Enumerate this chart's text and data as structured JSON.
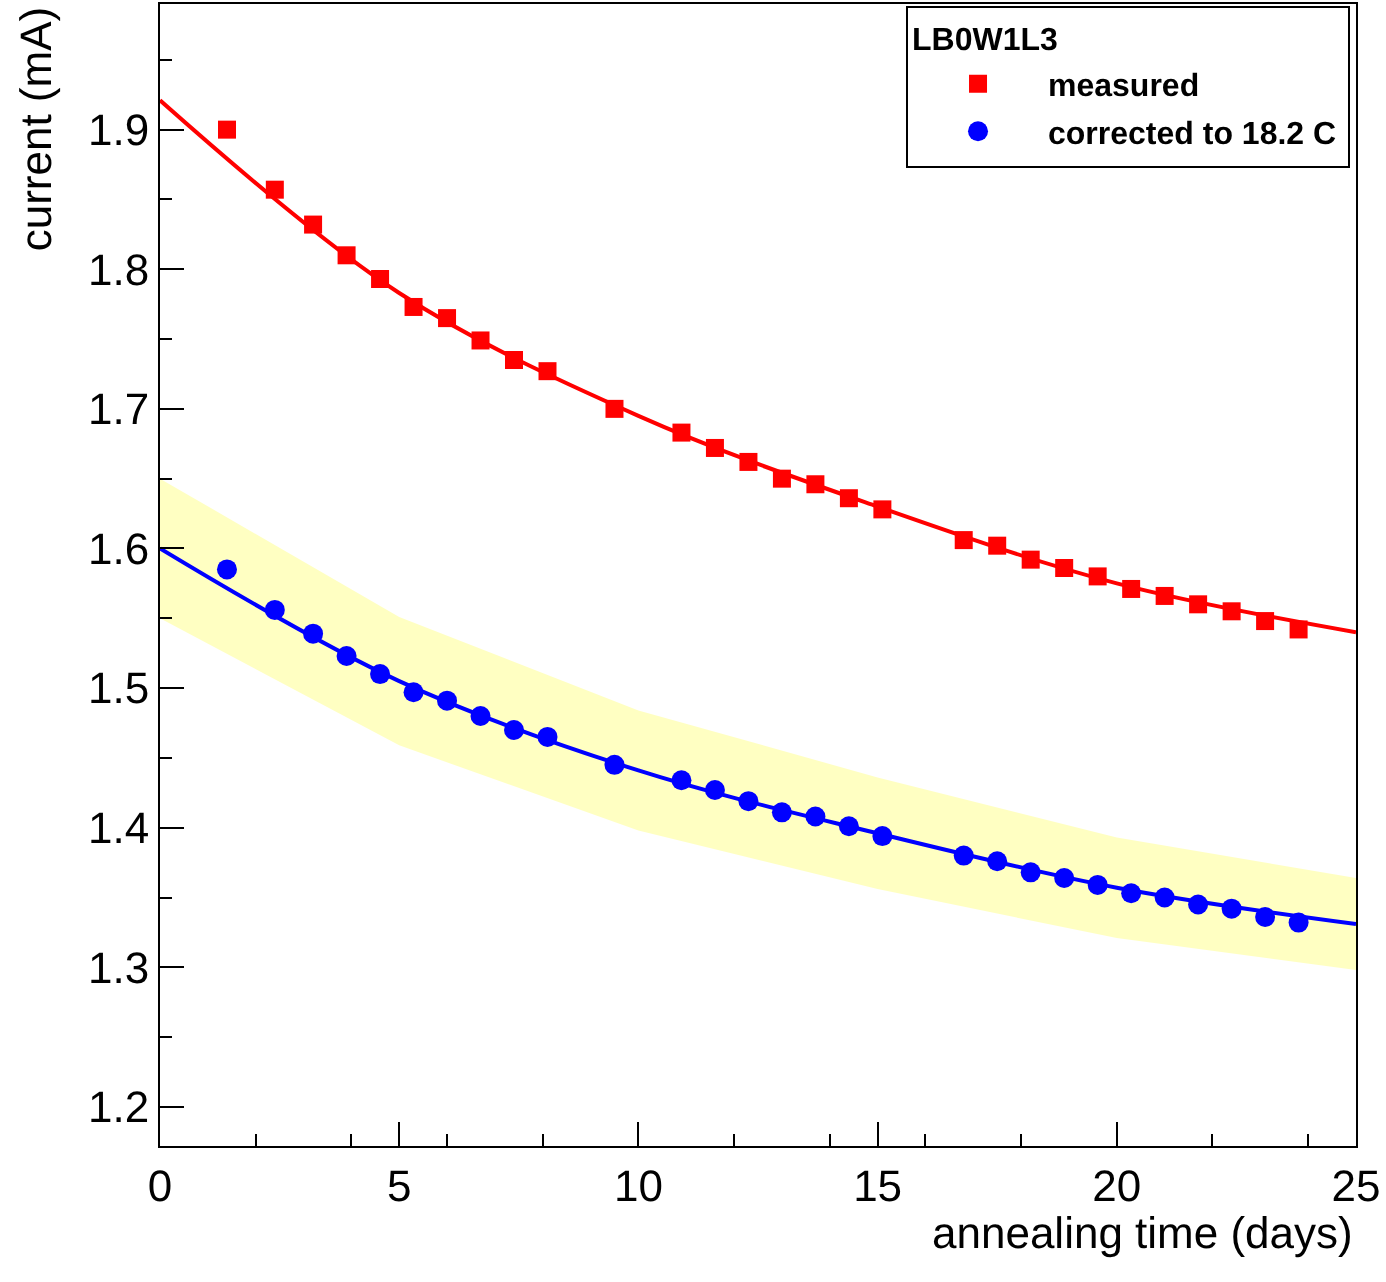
{
  "chart_data": {
    "type": "scatter",
    "xlabel": "annealing time (days)",
    "ylabel": "current (mA)",
    "legend_title": "LB0W1L3",
    "xlim": [
      0,
      25
    ],
    "xticks": [
      0,
      5,
      10,
      15,
      20,
      25
    ],
    "ylim": [
      1.172,
      1.99
    ],
    "yticks": [
      1.2,
      1.3,
      1.4,
      1.5,
      1.6,
      1.7,
      1.8,
      1.9
    ],
    "legend": "top right",
    "series": [
      {
        "type": "line",
        "color": "#0000ff",
        "marker": "none",
        "x": [
          0,
          5,
          10,
          15,
          20,
          25
        ],
        "values": [
          1.6,
          1.505,
          1.441,
          1.396,
          1.357,
          1.331
        ],
        "lower": [
          1.55,
          1.459,
          1.398,
          1.356,
          1.321,
          1.298
        ],
        "upper": [
          1.65,
          1.551,
          1.484,
          1.436,
          1.393,
          1.364
        ]
      },
      {
        "type": "line",
        "color": "#ff0000",
        "marker": "none",
        "x": [
          0,
          5,
          10,
          15,
          20,
          25
        ],
        "values": [
          1.921,
          1.783,
          1.695,
          1.63,
          1.575,
          1.54
        ]
      },
      {
        "name": "measured",
        "color": "#ff0000",
        "marker": "square",
        "x": [
          1.4,
          2.4,
          3.2,
          3.9,
          4.6,
          5.3,
          6.0,
          6.7,
          7.4,
          8.1,
          9.5,
          10.9,
          11.6,
          12.3,
          13.0,
          13.7,
          14.4,
          15.1,
          16.8,
          17.5,
          18.2,
          18.9,
          19.6,
          20.3,
          21.0,
          21.7,
          22.4,
          23.1,
          23.8
        ],
        "values": [
          1.9,
          1.857,
          1.832,
          1.81,
          1.793,
          1.773,
          1.765,
          1.749,
          1.735,
          1.727,
          1.7,
          1.683,
          1.672,
          1.662,
          1.65,
          1.646,
          1.636,
          1.628,
          1.606,
          1.602,
          1.592,
          1.586,
          1.58,
          1.571,
          1.566,
          1.56,
          1.555,
          1.548,
          1.542
        ]
      },
      {
        "name": "corrected to 18.2 C",
        "color": "#0000ff",
        "marker": "circle",
        "x": [
          1.4,
          2.4,
          3.2,
          3.9,
          4.6,
          5.3,
          6.0,
          6.7,
          7.4,
          8.1,
          9.5,
          10.9,
          11.6,
          12.3,
          13.0,
          13.7,
          14.4,
          15.1,
          16.8,
          17.5,
          18.2,
          18.9,
          19.6,
          20.3,
          21.0,
          21.7,
          22.4,
          23.1,
          23.8
        ],
        "values": [
          1.585,
          1.556,
          1.539,
          1.523,
          1.51,
          1.497,
          1.491,
          1.48,
          1.47,
          1.465,
          1.445,
          1.434,
          1.427,
          1.419,
          1.411,
          1.408,
          1.401,
          1.394,
          1.38,
          1.376,
          1.368,
          1.364,
          1.359,
          1.353,
          1.35,
          1.345,
          1.342,
          1.336,
          1.332
        ]
      }
    ]
  }
}
